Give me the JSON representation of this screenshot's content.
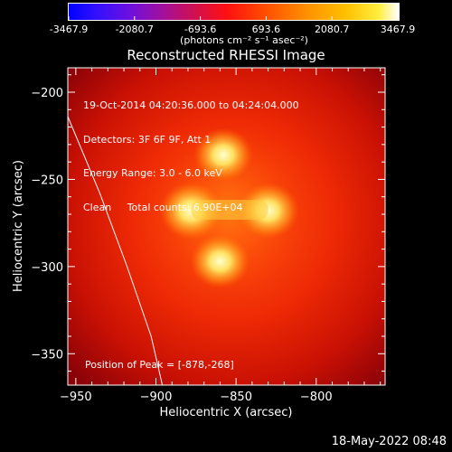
{
  "colorbar": {
    "ticks": [
      "-3467.9",
      "-2080.7",
      "-693.6",
      "693.6",
      "2080.7",
      "3467.9"
    ],
    "tick_values": [
      -3467.9,
      -2080.7,
      -693.6,
      693.6,
      2080.7,
      3467.9
    ],
    "units": "(photons cm⁻² s⁻¹ asec⁻²)"
  },
  "title": "Reconstructed RHESSI Image",
  "info": {
    "line1": "19-Oct-2014 04:20:36.000 to 04:24:04.000",
    "line2": "Detectors: 3F 6F 9F, Att 1",
    "line3": "Energy Range: 3.0 - 6.0 keV",
    "line4": "Clean     Total counts: 6.90E+04",
    "peak": "Position of Peak = [-878,-268]"
  },
  "footer": {
    "timestamp": "18-May-2022 08:48"
  },
  "chart_data": {
    "type": "heatmap",
    "title": "Reconstructed RHESSI Image",
    "xlabel": "Heliocentric X (arcsec)",
    "ylabel": "Heliocentric Y (arcsec)",
    "xlim": [
      -955,
      -757
    ],
    "ylim": [
      -368,
      -186
    ],
    "xticks": [
      -950,
      -900,
      -850,
      -800
    ],
    "yticks": [
      -200,
      -250,
      -300,
      -350
    ],
    "xticklabels": [
      "−950",
      "−900",
      "−850",
      "−800"
    ],
    "yticklabels": [
      "−200",
      "−250",
      "−300",
      "−350"
    ],
    "colormap": "hot",
    "sources": [
      {
        "x": -878,
        "y": -268,
        "peak": 1.0
      },
      {
        "x": -830,
        "y": -268,
        "peak": 0.92
      },
      {
        "x": -858,
        "y": -236,
        "peak": 0.78
      },
      {
        "x": -860,
        "y": -297,
        "peak": 0.8
      }
    ],
    "limb_curve": [
      {
        "x": -955,
        "y": -214
      },
      {
        "x": -935,
        "y": -258
      },
      {
        "x": -918,
        "y": -300
      },
      {
        "x": -903,
        "y": -340
      },
      {
        "x": -896,
        "y": -368
      }
    ]
  }
}
